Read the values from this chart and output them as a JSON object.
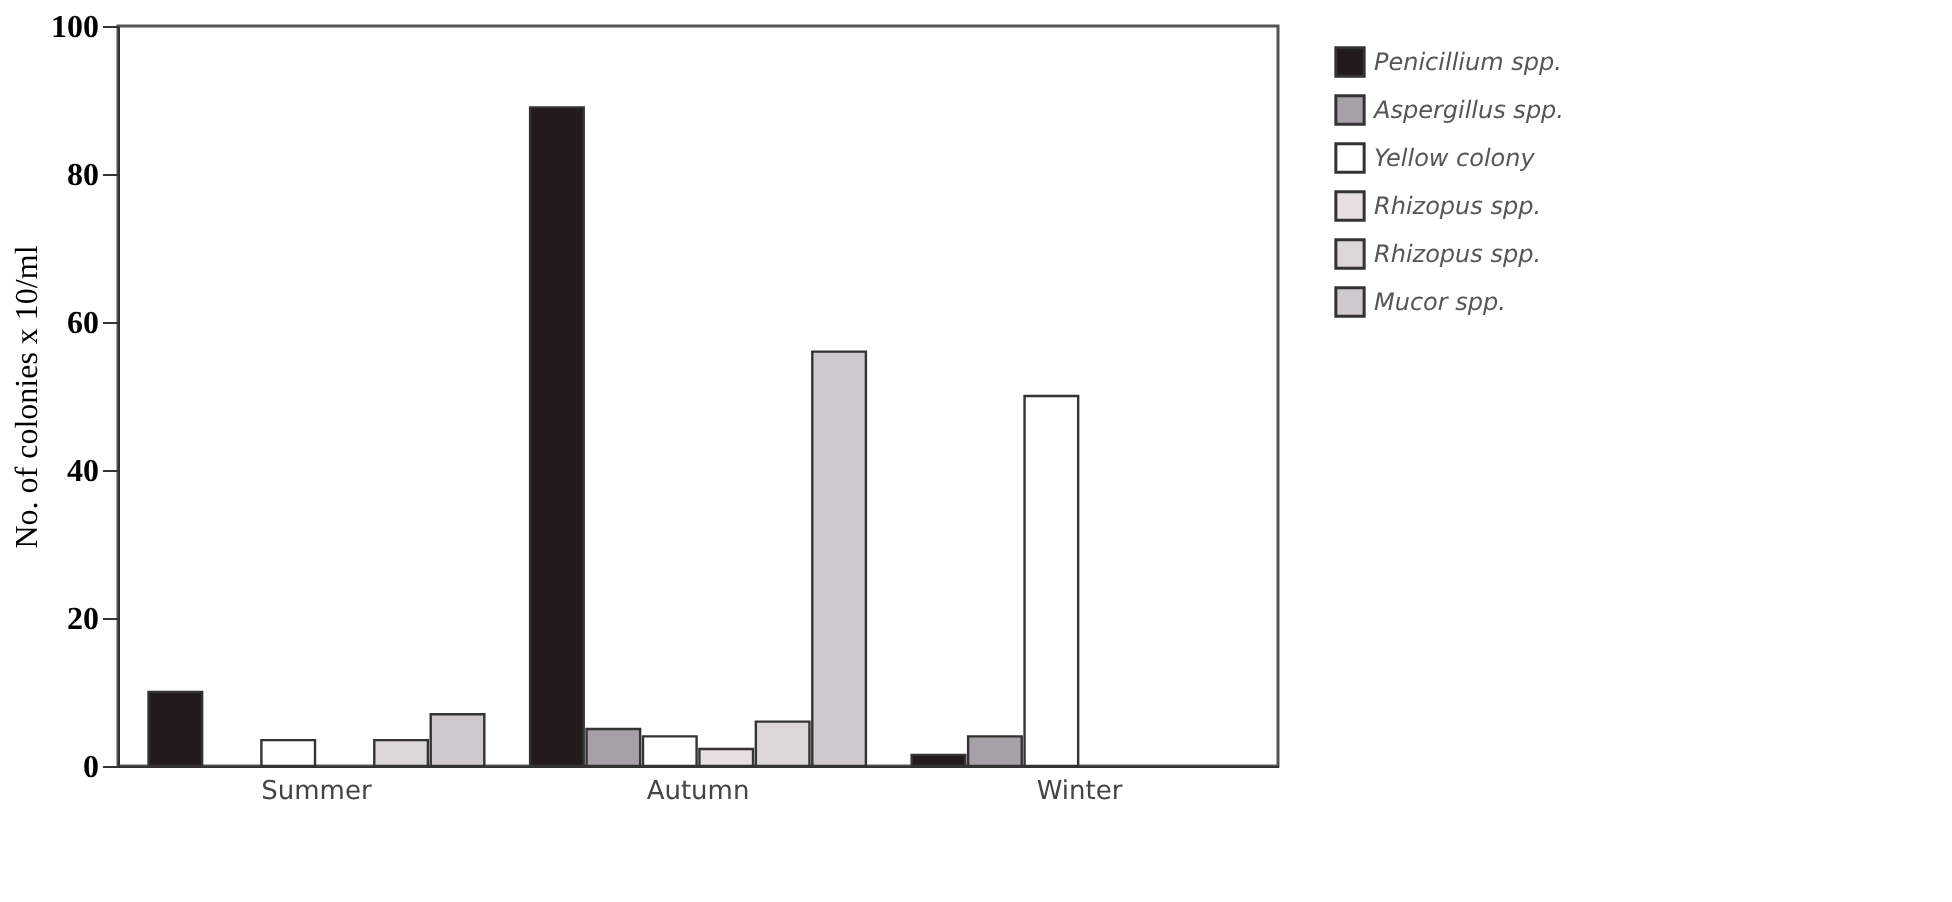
{
  "chart_data": {
    "type": "bar",
    "ylabel": "No. of colonies x 10/ml",
    "categories": [
      "Summer",
      "Autumn",
      "Winter"
    ],
    "series": [
      {
        "name": "Penicillium spp.",
        "color": "#231a1c",
        "values": [
          10,
          89,
          1.5
        ]
      },
      {
        "name": "Aspergillus spp.",
        "color": "#a8a0a8",
        "values": [
          null,
          5,
          4
        ]
      },
      {
        "name": "Yellow colony",
        "color": "#ffffff",
        "values": [
          3.5,
          4,
          50
        ]
      },
      {
        "name": "Rhizopus spp.",
        "color": "#e8dfe2",
        "values": [
          null,
          2.3,
          null
        ]
      },
      {
        "name": "Rhizopus spp.",
        "color": "#ddd6d8",
        "values": [
          3.5,
          6,
          null
        ]
      },
      {
        "name": "Mucor spp.",
        "color": "#cfc8cc",
        "values": [
          7,
          56,
          null
        ]
      }
    ],
    "ylim": [
      0,
      100
    ],
    "yticks": [
      0,
      20,
      40,
      60,
      80,
      100
    ],
    "grid": false,
    "legend": "right"
  }
}
